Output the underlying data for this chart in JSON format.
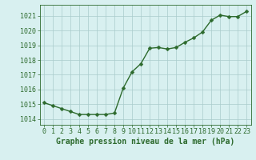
{
  "x": [
    0,
    1,
    2,
    3,
    4,
    5,
    6,
    7,
    8,
    9,
    10,
    11,
    12,
    13,
    14,
    15,
    16,
    17,
    18,
    19,
    20,
    21,
    22,
    23
  ],
  "y": [
    1015.1,
    1014.9,
    1014.7,
    1014.5,
    1014.3,
    1014.3,
    1014.3,
    1014.3,
    1014.4,
    1016.1,
    1017.2,
    1017.75,
    1018.8,
    1018.85,
    1018.75,
    1018.85,
    1019.2,
    1019.5,
    1019.9,
    1020.7,
    1021.05,
    1020.95,
    1020.95,
    1021.3
  ],
  "line_color": "#2d6a2d",
  "marker_color": "#2d6a2d",
  "bg_color": "#d8f0f0",
  "grid_color": "#aacccc",
  "ylabel_ticks": [
    1014,
    1015,
    1016,
    1017,
    1018,
    1019,
    1020,
    1021
  ],
  "xlabel": "Graphe pression niveau de la mer (hPa)",
  "ylim": [
    1013.6,
    1021.75
  ],
  "xlim": [
    -0.5,
    23.5
  ],
  "xlabel_color": "#2d6a2d",
  "axis_color": "#2d6a2d",
  "tick_color": "#2d6a2d",
  "label_fontsize": 7.0,
  "tick_fontsize": 6.0,
  "marker_size": 2.5,
  "line_width": 1.0
}
